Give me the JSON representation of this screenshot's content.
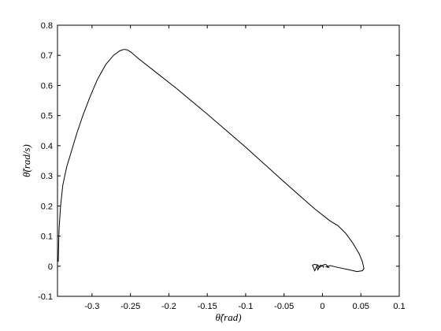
{
  "chart_data": {
    "type": "line",
    "title": "",
    "xlabel": "θ̃(rad)",
    "ylabel": "θ̃̇(rad/s)",
    "xlim": [
      -0.345,
      0.1
    ],
    "ylim": [
      -0.1,
      0.8
    ],
    "xticks": [
      -0.3,
      -0.25,
      -0.2,
      -0.15,
      -0.1,
      -0.05,
      0,
      0.05,
      0.1
    ],
    "xtick_labels": [
      "-0.3",
      "-0.25",
      "-0.2",
      "-0.15",
      "-0.1",
      "-0.05",
      "0",
      "0.05",
      "0.1"
    ],
    "yticks": [
      -0.1,
      0,
      0.1,
      0.2,
      0.3,
      0.4,
      0.5,
      0.6,
      0.7,
      0.8
    ],
    "ytick_labels": [
      "-0.1",
      "0",
      "0.1",
      "0.2",
      "0.3",
      "0.4",
      "0.5",
      "0.6",
      "0.7",
      "0.8"
    ],
    "grid": false,
    "line_color": "#000000",
    "series": [
      {
        "x": [
          -0.344,
          -0.343,
          -0.341,
          -0.338,
          -0.333,
          -0.327,
          -0.32,
          -0.312,
          -0.303,
          -0.293,
          -0.282,
          -0.272,
          -0.264,
          -0.258,
          -0.254,
          -0.249,
          -0.24,
          -0.22,
          -0.19,
          -0.15,
          -0.1,
          -0.05,
          -0.01,
          0.01,
          0.02,
          0.03,
          0.04,
          0.048,
          0.052,
          0.054,
          0.052,
          0.045,
          0.035,
          0.02,
          0.01,
          0.005,
          0.008,
          0.006,
          0.004,
          0.002,
          -0.004,
          -0.006,
          -0.008,
          -0.011,
          -0.013,
          -0.01,
          -0.007,
          -0.006,
          -0.003,
          0.0,
          0.001,
          0.002
        ],
        "y": [
          0.015,
          0.12,
          0.2,
          0.27,
          0.33,
          0.38,
          0.44,
          0.5,
          0.56,
          0.62,
          0.67,
          0.7,
          0.715,
          0.72,
          0.718,
          0.71,
          0.69,
          0.65,
          0.59,
          0.505,
          0.395,
          0.28,
          0.19,
          0.15,
          0.135,
          0.11,
          0.075,
          0.04,
          0.015,
          -0.008,
          -0.015,
          -0.018,
          -0.012,
          -0.004,
          0.002,
          -0.002,
          -0.004,
          0.002,
          0.006,
          0.005,
          -0.004,
          0.004,
          0.005,
          0.006,
          0.003,
          -0.015,
          0.002,
          -0.012,
          0.003,
          0.002,
          -0.003,
          0.0
        ]
      }
    ]
  }
}
